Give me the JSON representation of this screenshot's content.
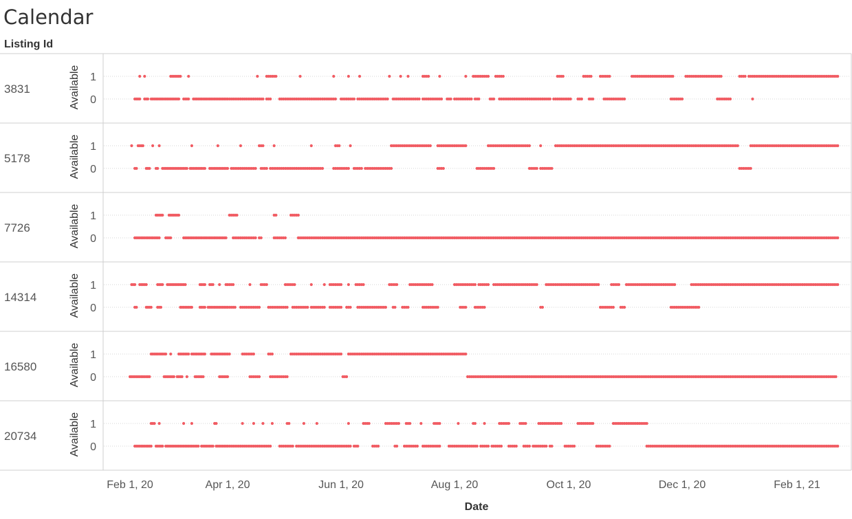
{
  "page_title": "Calendar",
  "row_header": "Listing Id",
  "chart_data": {
    "type": "scatter",
    "xlabel": "Date",
    "ylabel": "Available",
    "x_ticks": [
      "Feb 1, 20",
      "Apr 1, 20",
      "Jun 1, 20",
      "Aug 1, 20",
      "Oct 1, 20",
      "Dec 1, 20",
      "Feb 1, 21"
    ],
    "x_tick_dates": [
      "2020-02-01",
      "2020-04-01",
      "2020-06-01",
      "2020-08-01",
      "2020-10-01",
      "2020-12-01",
      "2021-02-01"
    ],
    "y_ticks": [
      1,
      0
    ],
    "xlim": [
      "2020-01-15",
      "2021-02-24"
    ],
    "ylim": [
      -0.4,
      1.6
    ],
    "grid": "dotted horizontal",
    "color": "#f15c63",
    "panels": [
      {
        "listing_id": "3831",
        "available_1": [
          [
            "2020-02-07",
            "2020-02-07"
          ],
          [
            "2020-02-10",
            "2020-02-10"
          ],
          [
            "2020-02-26",
            "2020-03-03"
          ],
          [
            "2020-03-08",
            "2020-03-08"
          ],
          [
            "2020-04-17",
            "2020-04-17"
          ],
          [
            "2020-04-22",
            "2020-04-27"
          ],
          [
            "2020-05-10",
            "2020-05-10"
          ],
          [
            "2020-05-28",
            "2020-05-28"
          ],
          [
            "2020-06-05",
            "2020-06-05"
          ],
          [
            "2020-06-11",
            "2020-06-11"
          ],
          [
            "2020-06-27",
            "2020-06-27"
          ],
          [
            "2020-07-03",
            "2020-07-03"
          ],
          [
            "2020-07-07",
            "2020-07-07"
          ],
          [
            "2020-07-15",
            "2020-07-18"
          ],
          [
            "2020-07-24",
            "2020-07-24"
          ],
          [
            "2020-08-07",
            "2020-08-07"
          ],
          [
            "2020-08-11",
            "2020-08-19"
          ],
          [
            "2020-08-23",
            "2020-08-27"
          ],
          [
            "2020-09-25",
            "2020-09-28"
          ],
          [
            "2020-10-09",
            "2020-10-13"
          ],
          [
            "2020-10-18",
            "2020-10-23"
          ],
          [
            "2020-11-04",
            "2020-11-26"
          ],
          [
            "2020-12-03",
            "2020-12-22"
          ],
          [
            "2021-01-01",
            "2021-01-04"
          ],
          [
            "2021-01-06",
            "2021-02-23"
          ]
        ],
        "available_0": [
          [
            "2020-02-04",
            "2020-02-07"
          ],
          [
            "2020-02-10",
            "2020-02-12"
          ],
          [
            "2020-02-14",
            "2020-03-02"
          ],
          [
            "2020-03-05",
            "2020-03-08"
          ],
          [
            "2020-03-11",
            "2020-04-20"
          ],
          [
            "2020-04-22",
            "2020-04-24"
          ],
          [
            "2020-04-29",
            "2020-05-29"
          ],
          [
            "2020-06-01",
            "2020-06-08"
          ],
          [
            "2020-06-10",
            "2020-06-26"
          ],
          [
            "2020-06-29",
            "2020-07-13"
          ],
          [
            "2020-07-15",
            "2020-07-25"
          ],
          [
            "2020-07-28",
            "2020-07-30"
          ],
          [
            "2020-08-01",
            "2020-08-10"
          ],
          [
            "2020-08-12",
            "2020-08-14"
          ],
          [
            "2020-08-20",
            "2020-08-22"
          ],
          [
            "2020-08-25",
            "2020-09-21"
          ],
          [
            "2020-09-23",
            "2020-10-02"
          ],
          [
            "2020-10-06",
            "2020-10-08"
          ],
          [
            "2020-10-12",
            "2020-10-14"
          ],
          [
            "2020-10-20",
            "2020-10-31"
          ],
          [
            "2020-11-25",
            "2020-12-01"
          ],
          [
            "2020-12-20",
            "2020-12-27"
          ],
          [
            "2021-01-08",
            "2021-01-08"
          ]
        ]
      },
      {
        "listing_id": "5178",
        "available_1": [
          [
            "2020-02-02",
            "2020-02-02"
          ],
          [
            "2020-02-06",
            "2020-02-09"
          ],
          [
            "2020-02-15",
            "2020-02-15"
          ],
          [
            "2020-02-19",
            "2020-02-19"
          ],
          [
            "2020-03-10",
            "2020-03-10"
          ],
          [
            "2020-03-26",
            "2020-03-26"
          ],
          [
            "2020-04-08",
            "2020-04-08"
          ],
          [
            "2020-04-18",
            "2020-04-20"
          ],
          [
            "2020-04-26",
            "2020-04-26"
          ],
          [
            "2020-05-16",
            "2020-05-16"
          ],
          [
            "2020-05-29",
            "2020-05-31"
          ],
          [
            "2020-06-06",
            "2020-06-06"
          ],
          [
            "2020-06-28",
            "2020-07-19"
          ],
          [
            "2020-07-23",
            "2020-08-07"
          ],
          [
            "2020-08-19",
            "2020-09-10"
          ],
          [
            "2020-09-16",
            "2020-09-16"
          ],
          [
            "2020-09-24",
            "2020-12-31"
          ],
          [
            "2021-01-07",
            "2021-02-23"
          ]
        ],
        "available_0": [
          [
            "2020-02-04",
            "2020-02-05"
          ],
          [
            "2020-02-11",
            "2020-02-13"
          ],
          [
            "2020-02-17",
            "2020-02-18"
          ],
          [
            "2020-02-21",
            "2020-03-07"
          ],
          [
            "2020-03-09",
            "2020-03-18"
          ],
          [
            "2020-03-21",
            "2020-04-01"
          ],
          [
            "2020-04-03",
            "2020-04-16"
          ],
          [
            "2020-04-19",
            "2020-04-22"
          ],
          [
            "2020-04-24",
            "2020-05-22"
          ],
          [
            "2020-05-28",
            "2020-06-05"
          ],
          [
            "2020-06-08",
            "2020-06-12"
          ],
          [
            "2020-06-14",
            "2020-06-28"
          ],
          [
            "2020-07-23",
            "2020-07-26"
          ],
          [
            "2020-08-13",
            "2020-08-22"
          ],
          [
            "2020-09-10",
            "2020-09-14"
          ],
          [
            "2020-09-16",
            "2020-09-22"
          ],
          [
            "2021-01-01",
            "2021-01-07"
          ]
        ]
      },
      {
        "listing_id": "7726",
        "available_1": [
          [
            "2020-02-17",
            "2020-02-21"
          ],
          [
            "2020-02-25",
            "2020-03-02"
          ],
          [
            "2020-04-02",
            "2020-04-06"
          ],
          [
            "2020-04-26",
            "2020-04-27"
          ],
          [
            "2020-05-05",
            "2020-05-09"
          ]
        ],
        "available_0": [
          [
            "2020-02-04",
            "2020-02-19"
          ],
          [
            "2020-02-23",
            "2020-02-26"
          ],
          [
            "2020-03-05",
            "2020-03-31"
          ],
          [
            "2020-04-04",
            "2020-04-16"
          ],
          [
            "2020-04-18",
            "2020-04-19"
          ],
          [
            "2020-04-26",
            "2020-05-02"
          ],
          [
            "2020-05-09",
            "2021-02-23"
          ]
        ]
      },
      {
        "listing_id": "14314",
        "available_1": [
          [
            "2020-02-02",
            "2020-02-04"
          ],
          [
            "2020-02-07",
            "2020-02-11"
          ],
          [
            "2020-02-18",
            "2020-02-21"
          ],
          [
            "2020-02-24",
            "2020-03-06"
          ],
          [
            "2020-03-15",
            "2020-03-18"
          ],
          [
            "2020-03-21",
            "2020-03-23"
          ],
          [
            "2020-03-27",
            "2020-03-27"
          ],
          [
            "2020-03-31",
            "2020-04-04"
          ],
          [
            "2020-04-13",
            "2020-04-13"
          ],
          [
            "2020-04-19",
            "2020-04-22"
          ],
          [
            "2020-05-02",
            "2020-05-07"
          ],
          [
            "2020-05-16",
            "2020-05-16"
          ],
          [
            "2020-05-23",
            "2020-05-23"
          ],
          [
            "2020-05-26",
            "2020-06-01"
          ],
          [
            "2020-06-05",
            "2020-06-05"
          ],
          [
            "2020-06-09",
            "2020-06-13"
          ],
          [
            "2020-06-27",
            "2020-07-01"
          ],
          [
            "2020-07-08",
            "2020-07-20"
          ],
          [
            "2020-08-01",
            "2020-08-12"
          ],
          [
            "2020-08-14",
            "2020-08-19"
          ],
          [
            "2020-08-22",
            "2020-09-14"
          ],
          [
            "2020-09-19",
            "2020-10-17"
          ],
          [
            "2020-10-24",
            "2020-10-28"
          ],
          [
            "2020-11-01",
            "2020-11-27"
          ],
          [
            "2020-12-06",
            "2021-02-23"
          ]
        ],
        "available_0": [
          [
            "2020-02-04",
            "2020-02-05"
          ],
          [
            "2020-02-11",
            "2020-02-14"
          ],
          [
            "2020-02-18",
            "2020-02-20"
          ],
          [
            "2020-03-03",
            "2020-03-10"
          ],
          [
            "2020-03-15",
            "2020-03-18"
          ],
          [
            "2020-03-20",
            "2020-04-05"
          ],
          [
            "2020-04-08",
            "2020-04-18"
          ],
          [
            "2020-04-23",
            "2020-05-03"
          ],
          [
            "2020-05-06",
            "2020-05-14"
          ],
          [
            "2020-05-16",
            "2020-05-23"
          ],
          [
            "2020-05-26",
            "2020-06-01"
          ],
          [
            "2020-06-04",
            "2020-06-06"
          ],
          [
            "2020-06-10",
            "2020-06-25"
          ],
          [
            "2020-06-29",
            "2020-06-30"
          ],
          [
            "2020-07-04",
            "2020-07-07"
          ],
          [
            "2020-07-15",
            "2020-07-23"
          ],
          [
            "2020-08-04",
            "2020-08-07"
          ],
          [
            "2020-08-12",
            "2020-08-17"
          ],
          [
            "2020-09-16",
            "2020-09-17"
          ],
          [
            "2020-10-18",
            "2020-10-25"
          ],
          [
            "2020-10-29",
            "2020-10-31"
          ],
          [
            "2020-11-25",
            "2020-12-10"
          ]
        ]
      },
      {
        "listing_id": "16580",
        "available_1": [
          [
            "2020-02-14",
            "2020-02-23"
          ],
          [
            "2020-02-26",
            "2020-02-26"
          ],
          [
            "2020-03-02",
            "2020-03-08"
          ],
          [
            "2020-03-10",
            "2020-03-18"
          ],
          [
            "2020-03-22",
            "2020-04-02"
          ],
          [
            "2020-04-09",
            "2020-04-15"
          ],
          [
            "2020-04-23",
            "2020-04-25"
          ],
          [
            "2020-05-05",
            "2020-06-01"
          ],
          [
            "2020-06-05",
            "2020-08-07"
          ]
        ],
        "available_0": [
          [
            "2020-02-01",
            "2020-02-13"
          ],
          [
            "2020-02-22",
            "2020-02-28"
          ],
          [
            "2020-03-01",
            "2020-03-04"
          ],
          [
            "2020-03-07",
            "2020-03-07"
          ],
          [
            "2020-03-12",
            "2020-03-17"
          ],
          [
            "2020-03-27",
            "2020-04-01"
          ],
          [
            "2020-04-13",
            "2020-04-18"
          ],
          [
            "2020-04-24",
            "2020-05-03"
          ],
          [
            "2020-06-02",
            "2020-06-04"
          ],
          [
            "2020-08-08",
            "2021-02-22"
          ]
        ]
      },
      {
        "listing_id": "20734",
        "available_1": [
          [
            "2020-02-14",
            "2020-02-16"
          ],
          [
            "2020-02-19",
            "2020-02-19"
          ],
          [
            "2020-03-05",
            "2020-03-05"
          ],
          [
            "2020-03-10",
            "2020-03-10"
          ],
          [
            "2020-03-24",
            "2020-03-25"
          ],
          [
            "2020-04-09",
            "2020-04-09"
          ],
          [
            "2020-04-15",
            "2020-04-15"
          ],
          [
            "2020-04-20",
            "2020-04-20"
          ],
          [
            "2020-04-25",
            "2020-04-25"
          ],
          [
            "2020-05-03",
            "2020-05-04"
          ],
          [
            "2020-05-12",
            "2020-05-12"
          ],
          [
            "2020-05-19",
            "2020-05-19"
          ],
          [
            "2020-06-05",
            "2020-06-05"
          ],
          [
            "2020-06-13",
            "2020-06-16"
          ],
          [
            "2020-06-25",
            "2020-07-02"
          ],
          [
            "2020-07-06",
            "2020-07-08"
          ],
          [
            "2020-07-14",
            "2020-07-14"
          ],
          [
            "2020-07-21",
            "2020-07-24"
          ],
          [
            "2020-08-03",
            "2020-08-03"
          ],
          [
            "2020-08-11",
            "2020-08-12"
          ],
          [
            "2020-08-17",
            "2020-08-17"
          ],
          [
            "2020-08-25",
            "2020-08-30"
          ],
          [
            "2020-09-05",
            "2020-09-08"
          ],
          [
            "2020-09-15",
            "2020-09-27"
          ],
          [
            "2020-10-06",
            "2020-10-14"
          ],
          [
            "2020-10-25",
            "2020-11-12"
          ]
        ],
        "available_0": [
          [
            "2020-02-04",
            "2020-02-14"
          ],
          [
            "2020-02-17",
            "2020-02-21"
          ],
          [
            "2020-02-23",
            "2020-03-03"
          ],
          [
            "2020-03-04",
            "2020-03-14"
          ],
          [
            "2020-03-16",
            "2020-03-23"
          ],
          [
            "2020-03-25",
            "2020-04-13"
          ],
          [
            "2020-04-14",
            "2020-04-24"
          ],
          [
            "2020-04-29",
            "2020-04-30"
          ],
          [
            "2020-05-01",
            "2020-05-06"
          ],
          [
            "2020-05-08",
            "2020-06-06"
          ],
          [
            "2020-06-08",
            "2020-06-10"
          ],
          [
            "2020-06-18",
            "2020-06-21"
          ],
          [
            "2020-06-30",
            "2020-07-01"
          ],
          [
            "2020-07-05",
            "2020-07-12"
          ],
          [
            "2020-07-15",
            "2020-07-24"
          ],
          [
            "2020-07-29",
            "2020-08-13"
          ],
          [
            "2020-08-15",
            "2020-08-19"
          ],
          [
            "2020-08-21",
            "2020-08-26"
          ],
          [
            "2020-08-30",
            "2020-09-03"
          ],
          [
            "2020-09-07",
            "2020-09-10"
          ],
          [
            "2020-09-12",
            "2020-09-19"
          ],
          [
            "2020-09-21",
            "2020-09-22"
          ],
          [
            "2020-09-29",
            "2020-10-04"
          ],
          [
            "2020-10-16",
            "2020-10-23"
          ],
          [
            "2020-11-12",
            "2021-02-23"
          ]
        ]
      }
    ]
  }
}
